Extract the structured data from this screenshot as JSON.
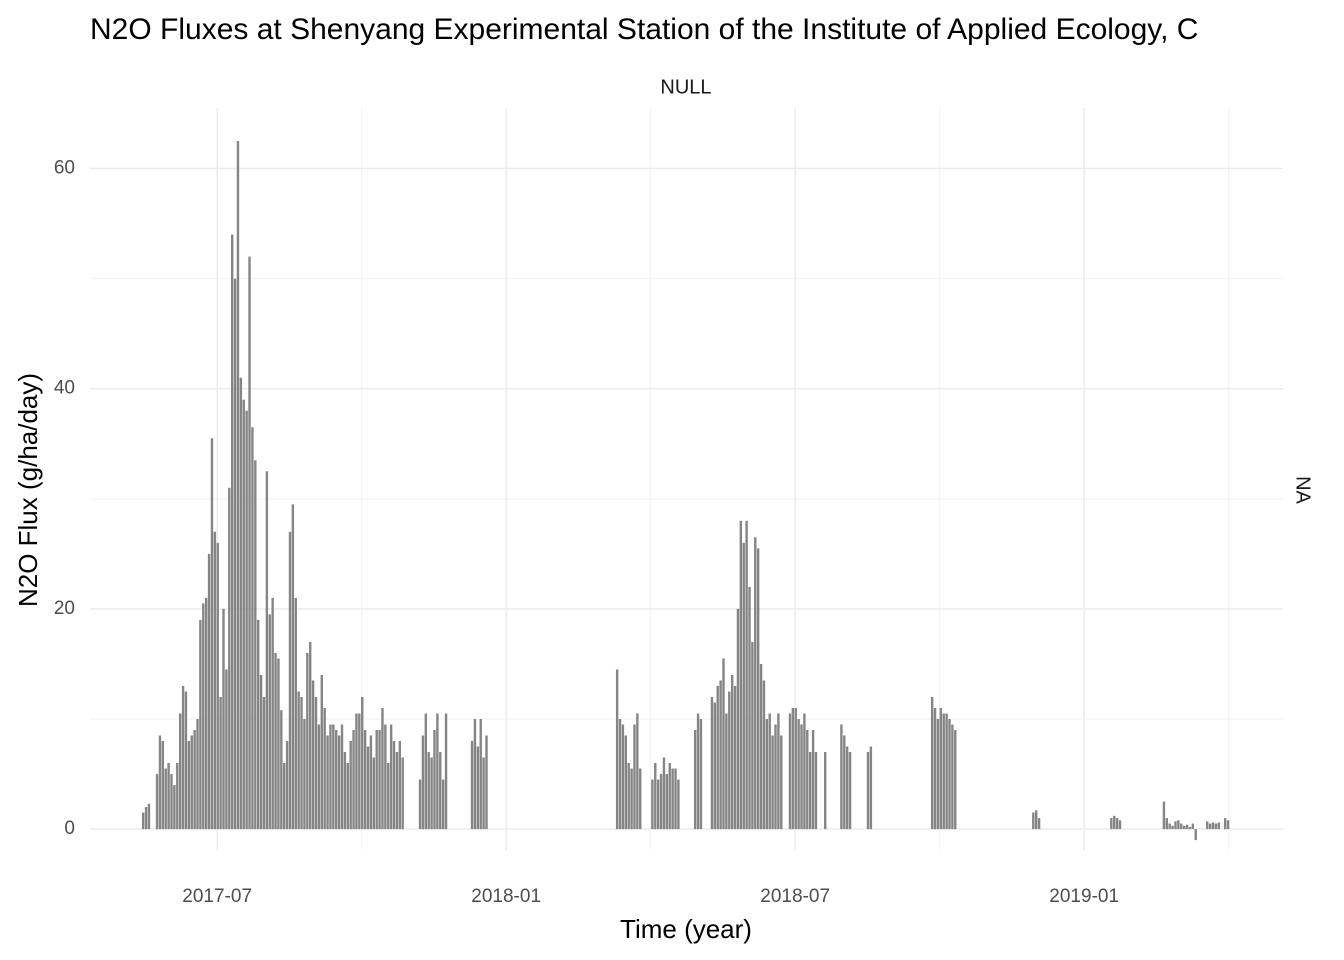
{
  "chart_data": {
    "type": "bar",
    "title": "N2O Fluxes at Shenyang Experimental Station of the Institute of Applied Ecology, C",
    "strip_top": "NULL",
    "strip_right": "NA",
    "x_label": "Time (year)",
    "y_label": "N2O Flux (g/ha/day)",
    "color": "#858585",
    "grid": true,
    "xlim": [
      2017.28,
      2019.344
    ],
    "ylim": [
      -1.9,
      65.5
    ],
    "xticks": [
      {
        "value": 2017.5,
        "label": "2017-07"
      },
      {
        "value": 2018,
        "label": "2018-01"
      },
      {
        "value": 2018.5,
        "label": "2018-07"
      },
      {
        "value": 2019,
        "label": "2019-01"
      }
    ],
    "xminorticks": [
      2017.75,
      2018.25,
      2018.75,
      2019.25
    ],
    "yticks": [
      0,
      20,
      40,
      60
    ],
    "yminorticks": [
      10,
      30,
      50
    ],
    "x": [
      2017.372,
      2017.377,
      2017.382,
      2017.396,
      2017.401,
      2017.406,
      2017.411,
      2017.416,
      2017.421,
      2017.426,
      2017.431,
      2017.436,
      2017.441,
      2017.446,
      2017.451,
      2017.456,
      2017.461,
      2017.466,
      2017.471,
      2017.476,
      2017.481,
      2017.486,
      2017.491,
      2017.496,
      2017.501,
      2017.506,
      2017.511,
      2017.516,
      2017.521,
      2017.526,
      2017.531,
      2017.536,
      2017.541,
      2017.546,
      2017.551,
      2017.556,
      2017.561,
      2017.566,
      2017.571,
      2017.576,
      2017.581,
      2017.586,
      2017.591,
      2017.596,
      2017.601,
      2017.606,
      2017.611,
      2017.616,
      2017.621,
      2017.626,
      2017.631,
      2017.636,
      2017.641,
      2017.646,
      2017.651,
      2017.656,
      2017.661,
      2017.666,
      2017.671,
      2017.676,
      2017.681,
      2017.686,
      2017.691,
      2017.696,
      2017.701,
      2017.706,
      2017.711,
      2017.716,
      2017.721,
      2017.726,
      2017.731,
      2017.736,
      2017.741,
      2017.746,
      2017.751,
      2017.756,
      2017.761,
      2017.766,
      2017.771,
      2017.776,
      2017.781,
      2017.786,
      2017.791,
      2017.796,
      2017.801,
      2017.806,
      2017.811,
      2017.816,
      2017.821,
      2017.851,
      2017.856,
      2017.861,
      2017.866,
      2017.871,
      2017.876,
      2017.881,
      2017.886,
      2017.891,
      2017.896,
      2017.941,
      2017.946,
      2017.951,
      2017.956,
      2017.961,
      2017.966,
      2018.192,
      2018.197,
      2018.202,
      2018.207,
      2018.212,
      2018.217,
      2018.222,
      2018.227,
      2018.232,
      2018.253,
      2018.258,
      2018.263,
      2018.268,
      2018.273,
      2018.278,
      2018.283,
      2018.288,
      2018.293,
      2018.298,
      2018.327,
      2018.332,
      2018.337,
      2018.356,
      2018.361,
      2018.366,
      2018.371,
      2018.376,
      2018.381,
      2018.386,
      2018.391,
      2018.396,
      2018.401,
      2018.406,
      2018.411,
      2018.416,
      2018.421,
      2018.426,
      2018.431,
      2018.436,
      2018.441,
      2018.446,
      2018.451,
      2018.456,
      2018.461,
      2018.466,
      2018.471,
      2018.476,
      2018.491,
      2018.496,
      2018.501,
      2018.506,
      2018.511,
      2018.516,
      2018.521,
      2018.526,
      2018.531,
      2018.536,
      2018.552,
      2018.58,
      2018.585,
      2018.59,
      2018.595,
      2018.626,
      2018.631,
      2018.737,
      2018.742,
      2018.747,
      2018.752,
      2018.757,
      2018.762,
      2018.767,
      2018.772,
      2018.777,
      2018.912,
      2018.917,
      2018.922,
      2019.047,
      2019.052,
      2019.057,
      2019.062,
      2019.138,
      2019.143,
      2019.148,
      2019.153,
      2019.158,
      2019.163,
      2019.168,
      2019.173,
      2019.178,
      2019.183,
      2019.188,
      2019.193,
      2019.213,
      2019.218,
      2019.223,
      2019.228,
      2019.233,
      2019.244,
      2019.249
    ],
    "values": [
      1.5,
      2,
      2.3,
      5,
      8.5,
      8,
      5.5,
      6,
      5,
      4,
      6,
      10.5,
      13,
      12.5,
      8,
      8.5,
      9,
      10,
      19,
      20.5,
      21,
      25,
      35.5,
      27,
      26,
      12,
      20,
      14.5,
      31,
      54,
      50,
      62.5,
      41,
      39,
      38,
      52,
      36.5,
      33.5,
      19,
      14,
      12,
      32.5,
      19.5,
      21,
      16,
      15.5,
      10.8,
      6,
      8,
      27,
      29.5,
      21,
      12.5,
      12,
      10,
      16,
      17,
      13.5,
      12,
      9.5,
      14,
      11,
      8.5,
      9.5,
      9.5,
      9,
      8.5,
      9.5,
      7,
      6,
      8,
      9,
      10.5,
      10.5,
      12,
      9,
      7.5,
      8.5,
      6.5,
      9,
      9,
      11,
      9.5,
      6,
      9.5,
      8,
      7,
      8,
      6.5,
      4.5,
      8.5,
      10.5,
      7,
      6.5,
      9,
      10.5,
      7,
      4.5,
      10.5,
      8,
      10,
      7.5,
      10,
      6.5,
      8.5,
      14.5,
      10,
      9.5,
      8.5,
      6,
      5.5,
      9.5,
      10.5,
      5.5,
      4.5,
      6,
      4.5,
      5,
      6.5,
      5,
      6,
      5.5,
      5.5,
      4.5,
      9,
      10.5,
      10,
      12,
      11.5,
      13,
      13.5,
      15.5,
      10.5,
      12.5,
      14,
      13,
      20,
      28,
      26,
      28,
      22,
      17,
      26.5,
      25.5,
      15,
      13.5,
      10,
      10.5,
      8.5,
      9.5,
      10.5,
      8.5,
      10.5,
      11,
      11,
      10,
      9.5,
      10.5,
      9,
      7,
      9,
      7,
      7,
      9.5,
      8.5,
      7.5,
      7,
      7,
      7.5,
      12,
      11,
      10,
      11,
      10.5,
      10.5,
      10,
      9.5,
      9,
      1.5,
      1.7,
      1,
      1,
      1.2,
      1,
      0.8,
      2.5,
      1,
      0.5,
      0.3,
      0.7,
      0.8,
      0.5,
      0.3,
      0.4,
      0.2,
      0.5,
      -1,
      0.7,
      0.5,
      0.6,
      0.5,
      0.6,
      1,
      0.8
    ]
  }
}
